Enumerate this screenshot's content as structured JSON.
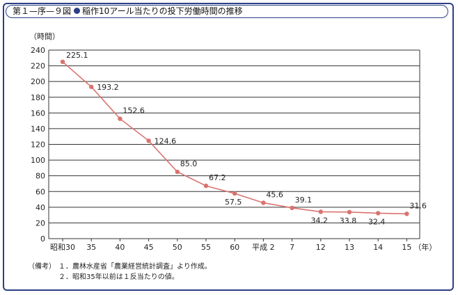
{
  "header": {
    "figure_no": "第１—序—９図",
    "title": "稲作10アール当たりの投下労働時間の推移"
  },
  "chart_data": {
    "type": "line",
    "title": "稲作10アール当たりの投下労働時間の推移",
    "ylabel": "（時間）",
    "xlabel": "（年）",
    "ylim": [
      0,
      240
    ],
    "yticks": [
      "0",
      "20",
      "40",
      "60",
      "80",
      "100",
      "120",
      "140",
      "160",
      "180",
      "200",
      "220",
      "240"
    ],
    "categories": [
      "昭和30",
      "35",
      "40",
      "45",
      "50",
      "55",
      "60",
      "平成 2",
      "7",
      "12",
      "13",
      "14",
      "15"
    ],
    "values": [
      225.1,
      193.2,
      152.6,
      124.6,
      85.0,
      67.2,
      57.5,
      45.6,
      39.1,
      34.2,
      33.8,
      32.4,
      31.6
    ],
    "data_labels": [
      "225.1",
      "193.2",
      "152.6",
      "124.6",
      "85.0",
      "67.2",
      "57.5",
      "45.6",
      "39.1",
      "34.2",
      "33.8",
      "32.4",
      "31.6"
    ],
    "label_positions": [
      "above",
      "right",
      "above",
      "right",
      "above",
      "above",
      "below",
      "above",
      "above",
      "below",
      "below",
      "below",
      "above"
    ],
    "grid": true,
    "line_color": "#d9736f",
    "marker_color": "#d9736f"
  },
  "notes": {
    "label": "（備考）",
    "items": [
      "１．農林水産省「農業経営統計調査」より作成。",
      "２．昭和35年以前は１反当たりの値。"
    ]
  },
  "colors": {
    "frame": "#2b3f86",
    "grid": "#333333"
  }
}
